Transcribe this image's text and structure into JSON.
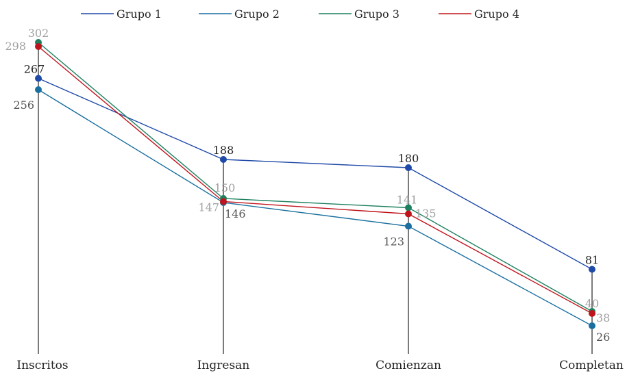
{
  "chart_data": {
    "type": "line",
    "categories": [
      "Inscritos",
      "Ingresan",
      "Comienzan",
      "Completan"
    ],
    "ylim": [
      0,
      320
    ],
    "grid": false,
    "legend_placement": "top",
    "series": [
      {
        "name": "Grupo 1",
        "values": [
          267,
          188,
          180,
          81
        ],
        "color": "#1f4aa8",
        "label_color": "#222222"
      },
      {
        "name": "Grupo 2",
        "values": [
          256,
          146,
          123,
          26
        ],
        "color": "#1a6fa0",
        "label_color": "#555555"
      },
      {
        "name": "Grupo 3",
        "values": [
          302,
          150,
          141,
          40
        ],
        "color": "#1f8060",
        "label_color": "#a0a0a0"
      },
      {
        "name": "Grupo 4",
        "values": [
          298,
          147,
          135,
          38
        ],
        "color": "#c0141c",
        "label_color": "#a0a0a0"
      }
    ]
  }
}
